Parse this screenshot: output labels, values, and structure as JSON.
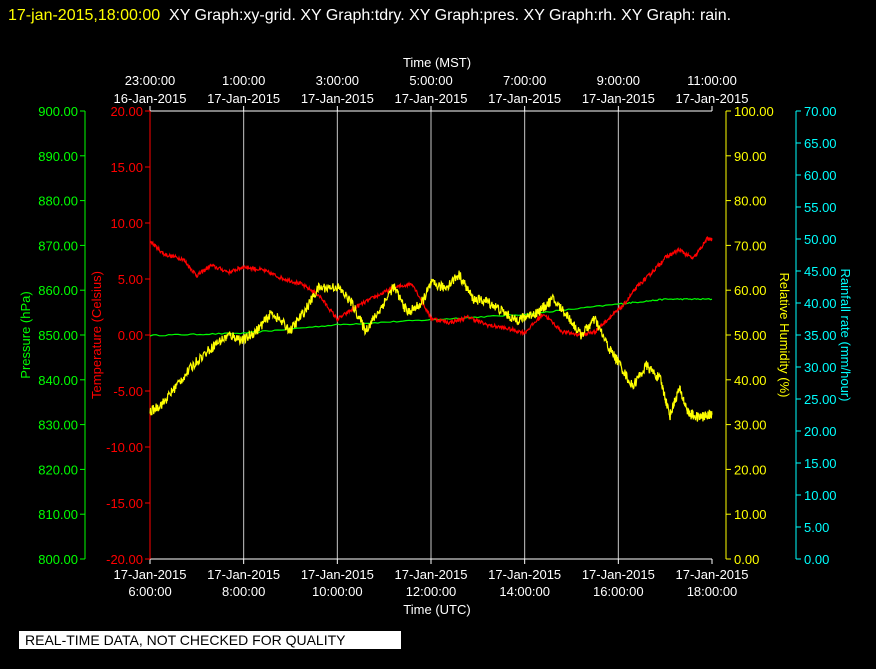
{
  "header": {
    "timestamp": "17-jan-2015,18:00:00",
    "graphs_text": "XY Graph:xy-grid.  XY Graph:tdry.  XY Graph:pres.  XY Graph:rh.  XY Graph: rain."
  },
  "footer": {
    "qc_note": "REAL-TIME DATA, NOT CHECKED FOR QUALITY"
  },
  "colors": {
    "background": "#000000",
    "frame": "#ffffff",
    "grid": "#c8c8c8",
    "pressure": "#00ff00",
    "temperature": "#ff0000",
    "humidity": "#ffff00",
    "rain": "#00ffff"
  },
  "chart_data": {
    "type": "line",
    "x_bottom": {
      "label": "Time (UTC)",
      "range": [
        "17-Jan-2015 06:00:00",
        "17-Jan-2015 18:00:00"
      ],
      "ticks": [
        {
          "date": "17-Jan-2015",
          "time": "6:00:00"
        },
        {
          "date": "17-Jan-2015",
          "time": "8:00:00"
        },
        {
          "date": "17-Jan-2015",
          "time": "10:00:00"
        },
        {
          "date": "17-Jan-2015",
          "time": "12:00:00"
        },
        {
          "date": "17-Jan-2015",
          "time": "14:00:00"
        },
        {
          "date": "17-Jan-2015",
          "time": "16:00:00"
        },
        {
          "date": "17-Jan-2015",
          "time": "18:00:00"
        }
      ]
    },
    "x_top": {
      "label": "Time (MST)",
      "ticks": [
        {
          "time": "23:00:00",
          "date": "16-Jan-2015"
        },
        {
          "time": "1:00:00",
          "date": "17-Jan-2015"
        },
        {
          "time": "3:00:00",
          "date": "17-Jan-2015"
        },
        {
          "time": "5:00:00",
          "date": "17-Jan-2015"
        },
        {
          "time": "7:00:00",
          "date": "17-Jan-2015"
        },
        {
          "time": "9:00:00",
          "date": "17-Jan-2015"
        },
        {
          "time": "11:00:00",
          "date": "17-Jan-2015"
        }
      ]
    },
    "grid": "vertical",
    "axes": {
      "pressure": {
        "label": "Pressure (hPa)",
        "range": [
          800,
          900
        ],
        "ticks": [
          "800.00",
          "810.00",
          "820.00",
          "830.00",
          "840.00",
          "850.00",
          "860.00",
          "870.00",
          "880.00",
          "890.00",
          "900.00"
        ]
      },
      "temperature": {
        "label": "Temperature (Celsius)",
        "range": [
          -20,
          20
        ],
        "ticks": [
          "-20.00",
          "-15.00",
          "-10.00",
          "-5.00",
          "0.00",
          "5.00",
          "10.00",
          "15.00",
          "20.00"
        ]
      },
      "humidity": {
        "label": "Relative Humidity (%)",
        "range": [
          0,
          100
        ],
        "ticks": [
          "0.00",
          "10.00",
          "20.00",
          "30.00",
          "40.00",
          "50.00",
          "60.00",
          "70.00",
          "80.00",
          "90.00",
          "100.00"
        ]
      },
      "rain": {
        "label": "Rainfall rate (mm/hour)",
        "range": [
          0,
          70
        ],
        "ticks": [
          "0.00",
          "5.00",
          "10.00",
          "15.00",
          "20.00",
          "25.00",
          "30.00",
          "35.00",
          "40.00",
          "45.00",
          "50.00",
          "55.00",
          "60.00",
          "65.00",
          "70.00"
        ]
      }
    },
    "series": [
      {
        "axis": "pressure",
        "x_hours_utc": [
          6,
          8,
          10,
          12,
          14,
          16,
          17,
          18
        ],
        "values": [
          849.9,
          850.4,
          852.3,
          853.4,
          854.6,
          856.9,
          858.0,
          858.0
        ]
      },
      {
        "axis": "temperature",
        "x_hours_utc": [
          6,
          6.3,
          6.7,
          7,
          7.3,
          7.7,
          8,
          8.4,
          8.8,
          9.2,
          9.6,
          10,
          10.4,
          10.8,
          11.2,
          11.6,
          12,
          12.4,
          12.8,
          13.2,
          13.6,
          14,
          14.4,
          14.8,
          15.2,
          15.5,
          15.8,
          16.1,
          16.4,
          16.7,
          17,
          17.3,
          17.6,
          17.9,
          18
        ],
        "values": [
          8.4,
          7.2,
          6.8,
          5.3,
          6.2,
          5.6,
          6.1,
          5.8,
          5.1,
          4.6,
          3.6,
          1.4,
          2.5,
          3.4,
          4.2,
          4.6,
          1.5,
          1.1,
          1.6,
          0.9,
          0.6,
          0.2,
          1.9,
          0.3,
          0.0,
          0.3,
          1.5,
          2.6,
          4.3,
          5.5,
          6.9,
          7.6,
          6.8,
          8.6,
          8.5
        ]
      },
      {
        "axis": "humidity",
        "x_hours_utc": [
          6,
          6.3,
          6.6,
          7,
          7.4,
          7.7,
          8,
          8.3,
          8.6,
          9,
          9.3,
          9.6,
          10,
          10.3,
          10.6,
          10.9,
          11.2,
          11.5,
          11.8,
          12,
          12.3,
          12.6,
          12.9,
          13.2,
          13.5,
          13.8,
          14,
          14.3,
          14.6,
          14.9,
          15.2,
          15.5,
          15.8,
          16,
          16.3,
          16.6,
          16.9,
          17.1,
          17.3,
          17.5,
          17.7,
          17.9,
          18
        ],
        "values": [
          32.8,
          35.0,
          39.2,
          44.2,
          48.0,
          50.0,
          48.8,
          51.2,
          55.0,
          51.0,
          55.3,
          60.5,
          60.8,
          57.3,
          51.0,
          55.5,
          60.8,
          55.0,
          57.0,
          61.5,
          60.5,
          63.5,
          58.0,
          57.5,
          55.5,
          53.2,
          54.0,
          55.2,
          58.0,
          54.5,
          50.0,
          53.5,
          47.0,
          44.0,
          38.5,
          43.2,
          40.0,
          32.0,
          38.0,
          32.5,
          31.6,
          32.0,
          32.5
        ]
      },
      {
        "axis": "rain",
        "x_hours_utc": [
          6,
          18
        ],
        "values": [
          0,
          0
        ]
      }
    ]
  }
}
